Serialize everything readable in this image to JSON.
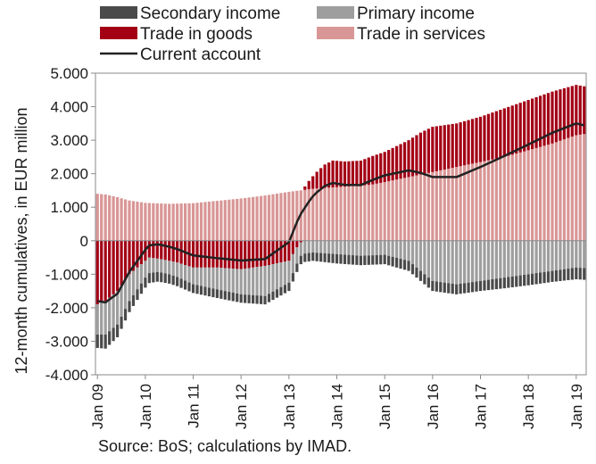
{
  "chart_data": {
    "type": "bar",
    "stacked": true,
    "ylabel": "12-month cumulatives, in EUR million",
    "ylim": [
      -4000,
      5000
    ],
    "yticks": [
      {
        "value": 5000,
        "label": "5.000"
      },
      {
        "value": 4000,
        "label": "4.000"
      },
      {
        "value": 3000,
        "label": "3.000"
      },
      {
        "value": 2000,
        "label": "2.000"
      },
      {
        "value": 1000,
        "label": "1.000"
      },
      {
        "value": 0,
        "label": "0"
      },
      {
        "value": -1000,
        "label": "-1.000"
      },
      {
        "value": -2000,
        "label": "-2.000"
      },
      {
        "value": -3000,
        "label": "-3.000"
      },
      {
        "value": -4000,
        "label": "-4.000"
      }
    ],
    "x_start": "Jan 09",
    "x_end": "Mar 19",
    "x_ticks": [
      "Jan 09",
      "Jan 10",
      "Jan 11",
      "Jan 12",
      "Jan 13",
      "Jan 14",
      "Jan 15",
      "Jan 16",
      "Jan 17",
      "Jan 18",
      "Jan 19"
    ],
    "grid": false,
    "legend_position": "top",
    "legend_order": [
      "Secondary income",
      "Primary income",
      "Trade in goods",
      "Trade in services",
      "Current account"
    ],
    "colors": {
      "Secondary income": "#4a4a4a",
      "Primary income": "#9e9e9e",
      "Trade in goods": "#a30015",
      "Trade in services": "#d99696",
      "Current account": "#222222"
    },
    "anchors": {
      "Trade in services": {
        "t": [
          0,
          2,
          5,
          8,
          12,
          18,
          24,
          30,
          36,
          42,
          48,
          54,
          60,
          63,
          66,
          69,
          72,
          78,
          84,
          90,
          96,
          102,
          108,
          114,
          120,
          126
        ],
        "v": [
          1400,
          1380,
          1300,
          1200,
          1130,
          1100,
          1120,
          1190,
          1260,
          1350,
          1460,
          1550,
          1600,
          1620,
          1640,
          1680,
          1750,
          1900,
          2050,
          2200,
          2350,
          2500,
          2700,
          2900,
          3150,
          3250
        ]
      },
      "Trade in goods": {
        "t": [
          0,
          2,
          5,
          8,
          11,
          13,
          16,
          20,
          24,
          30,
          36,
          42,
          48,
          50,
          53,
          55,
          57,
          59,
          62,
          66,
          69,
          72,
          75,
          78,
          81,
          84,
          90,
          96,
          102,
          108,
          114,
          120,
          124,
          126
        ],
        "v": [
          -1900,
          -1800,
          -1500,
          -1000,
          -700,
          -500,
          -550,
          -650,
          -800,
          -800,
          -850,
          -750,
          -600,
          -200,
          250,
          500,
          700,
          800,
          750,
          750,
          850,
          900,
          1000,
          1100,
          1250,
          1350,
          1300,
          1350,
          1450,
          1500,
          1550,
          1500,
          1350,
          900
        ]
      },
      "Primary income": {
        "t": [
          0,
          2,
          5,
          8,
          12,
          15,
          18,
          24,
          30,
          36,
          42,
          48,
          51,
          54,
          60,
          66,
          72,
          78,
          84,
          90,
          96,
          102,
          108,
          114,
          120,
          126
        ],
        "v": [
          -900,
          -1000,
          -1000,
          -800,
          -500,
          -400,
          -400,
          -500,
          -650,
          -750,
          -900,
          -650,
          -400,
          -350,
          -400,
          -450,
          -420,
          -600,
          -1200,
          -1300,
          -1200,
          -1100,
          -1000,
          -900,
          -800,
          -850
        ]
      },
      "Secondary income": {
        "t": [
          0,
          2,
          5,
          8,
          12,
          18,
          24,
          30,
          36,
          42,
          48,
          54,
          60,
          66,
          72,
          78,
          84,
          90,
          96,
          102,
          108,
          114,
          120,
          126
        ],
        "v": [
          -400,
          -420,
          -380,
          -330,
          -300,
          -280,
          -260,
          -260,
          -250,
          -250,
          -250,
          -250,
          -280,
          -280,
          -280,
          -300,
          -300,
          -300,
          -300,
          -320,
          -330,
          -330,
          -350,
          -350
        ]
      }
    }
  },
  "legend": {
    "items": [
      "Secondary income",
      "Primary income",
      "Trade in goods",
      "Trade in services",
      "Current account"
    ]
  },
  "source": "Source: BoS; calculations by IMAD."
}
